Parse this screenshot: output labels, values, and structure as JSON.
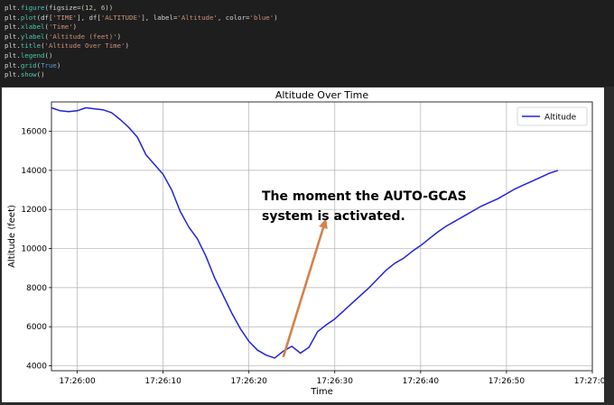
{
  "code": {
    "lines": [
      [
        {
          "t": "plt.",
          "c": "kw"
        },
        {
          "t": "figure",
          "c": "fn"
        },
        {
          "t": "(figsize=(",
          "c": "p"
        },
        {
          "t": "12",
          "c": "num"
        },
        {
          "t": ", ",
          "c": "p"
        },
        {
          "t": "6",
          "c": "num"
        },
        {
          "t": "))",
          "c": "p"
        }
      ],
      [
        {
          "t": "plt.",
          "c": "kw"
        },
        {
          "t": "plot",
          "c": "fn"
        },
        {
          "t": "(df[",
          "c": "p"
        },
        {
          "t": "'TIME'",
          "c": "str"
        },
        {
          "t": "], df[",
          "c": "p"
        },
        {
          "t": "'ALTITUDE'",
          "c": "str"
        },
        {
          "t": "], label=",
          "c": "p"
        },
        {
          "t": "'Altitude'",
          "c": "str"
        },
        {
          "t": ", color=",
          "c": "p"
        },
        {
          "t": "'blue'",
          "c": "str"
        },
        {
          "t": ")",
          "c": "p"
        }
      ],
      [
        {
          "t": "plt.",
          "c": "kw"
        },
        {
          "t": "xlabel",
          "c": "fn"
        },
        {
          "t": "(",
          "c": "p"
        },
        {
          "t": "'Time'",
          "c": "str"
        },
        {
          "t": ")",
          "c": "p"
        }
      ],
      [
        {
          "t": "plt.",
          "c": "kw"
        },
        {
          "t": "ylabel",
          "c": "fn"
        },
        {
          "t": "(",
          "c": "p"
        },
        {
          "t": "'Altitude (feet)'",
          "c": "str"
        },
        {
          "t": ")",
          "c": "p"
        }
      ],
      [
        {
          "t": "plt.",
          "c": "kw"
        },
        {
          "t": "title",
          "c": "fn"
        },
        {
          "t": "(",
          "c": "p"
        },
        {
          "t": "'Altitude Over Time'",
          "c": "str"
        },
        {
          "t": ")",
          "c": "p"
        }
      ],
      [
        {
          "t": "plt.",
          "c": "kw"
        },
        {
          "t": "legend",
          "c": "fn"
        },
        {
          "t": "()",
          "c": "p"
        }
      ],
      [
        {
          "t": "plt.",
          "c": "kw"
        },
        {
          "t": "grid",
          "c": "fn"
        },
        {
          "t": "(",
          "c": "p"
        },
        {
          "t": "True",
          "c": "cls"
        },
        {
          "t": ")",
          "c": "p"
        }
      ],
      [
        {
          "t": "plt.",
          "c": "kw"
        },
        {
          "t": "show",
          "c": "fn"
        },
        {
          "t": "()",
          "c": "p"
        }
      ]
    ]
  },
  "chart_data": {
    "type": "line",
    "title": "Altitude Over Time",
    "xlabel": "Time",
    "ylabel": "Altitude (feet)",
    "grid": true,
    "legend_position": "top-right",
    "xlim": [
      "17:25:57",
      "17:27:00"
    ],
    "ylim": [
      3750,
      17500
    ],
    "x_ticks": [
      "17:26:00",
      "17:26:10",
      "17:26:20",
      "17:26:30",
      "17:26:40",
      "17:26:50",
      "17:27:00"
    ],
    "y_ticks": [
      4000,
      6000,
      8000,
      10000,
      12000,
      14000,
      16000
    ],
    "series": [
      {
        "name": "Altitude",
        "color": "#2222dd",
        "points": [
          [
            "17:25:57",
            17200
          ],
          [
            "17:25:58",
            17050
          ],
          [
            "17:25:59",
            17000
          ],
          [
            "17:26:00",
            17050
          ],
          [
            "17:26:01",
            17200
          ],
          [
            "17:26:02",
            17150
          ],
          [
            "17:26:03",
            17100
          ],
          [
            "17:26:04",
            16950
          ],
          [
            "17:26:05",
            16600
          ],
          [
            "17:26:06",
            16200
          ],
          [
            "17:26:07",
            15700
          ],
          [
            "17:26:08",
            14800
          ],
          [
            "17:26:09",
            14300
          ],
          [
            "17:26:10",
            13800
          ],
          [
            "17:26:11",
            13000
          ],
          [
            "17:26:12",
            11900
          ],
          [
            "17:26:13",
            11100
          ],
          [
            "17:26:14",
            10500
          ],
          [
            "17:26:15",
            9600
          ],
          [
            "17:26:16",
            8500
          ],
          [
            "17:26:17",
            7600
          ],
          [
            "17:26:18",
            6700
          ],
          [
            "17:26:19",
            5900
          ],
          [
            "17:26:20",
            5250
          ],
          [
            "17:26:21",
            4800
          ],
          [
            "17:26:22",
            4550
          ],
          [
            "17:26:23",
            4400
          ],
          [
            "17:26:24",
            4750
          ],
          [
            "17:26:25",
            5000
          ],
          [
            "17:26:26",
            4650
          ],
          [
            "17:26:27",
            4950
          ],
          [
            "17:26:28",
            5750
          ],
          [
            "17:26:29",
            6100
          ],
          [
            "17:26:30",
            6400
          ],
          [
            "17:26:31",
            6800
          ],
          [
            "17:26:32",
            7200
          ],
          [
            "17:26:33",
            7600
          ],
          [
            "17:26:34",
            8000
          ],
          [
            "17:26:35",
            8450
          ],
          [
            "17:26:36",
            8900
          ],
          [
            "17:26:37",
            9250
          ],
          [
            "17:26:38",
            9500
          ],
          [
            "17:26:39",
            9850
          ],
          [
            "17:26:40",
            10150
          ],
          [
            "17:26:41",
            10500
          ],
          [
            "17:26:42",
            10850
          ],
          [
            "17:26:43",
            11150
          ],
          [
            "17:26:44",
            11400
          ],
          [
            "17:26:45",
            11650
          ],
          [
            "17:26:46",
            11900
          ],
          [
            "17:26:47",
            12150
          ],
          [
            "17:26:48",
            12350
          ],
          [
            "17:26:49",
            12550
          ],
          [
            "17:26:50",
            12800
          ],
          [
            "17:26:51",
            13050
          ],
          [
            "17:26:52",
            13250
          ],
          [
            "17:26:53",
            13450
          ],
          [
            "17:26:54",
            13650
          ],
          [
            "17:26:55",
            13850
          ],
          [
            "17:26:56",
            14000
          ]
        ]
      }
    ],
    "annotation": {
      "text_lines": [
        "The moment the AUTO-GCAS",
        "system is activated."
      ],
      "arrow_color": "#d4824a",
      "arrow_from": [
        "17:26:24",
        4450
      ],
      "arrow_to": [
        "17:26:29",
        11550
      ]
    }
  }
}
